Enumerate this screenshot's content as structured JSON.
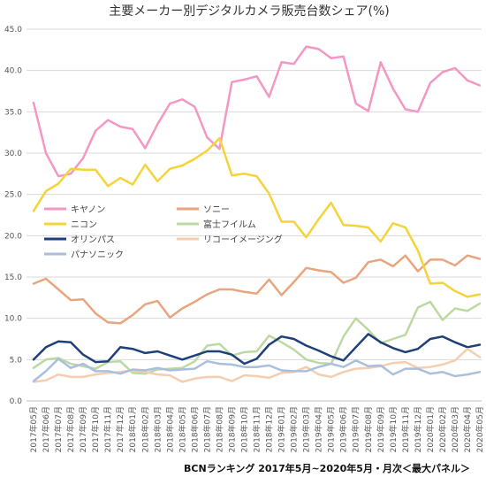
{
  "chart_data": {
    "type": "line",
    "title": "主要メーカー別デジタルカメラ販売台数シェア(%)",
    "source_note": "BCNランキング 2017年5月~2020年5月・月次＜最大パネル＞",
    "ylim": [
      0,
      45
    ],
    "yticks": [
      "0.0",
      "5.0",
      "10.0",
      "15.0",
      "20.0",
      "25.0",
      "30.0",
      "35.0",
      "40.0",
      "45.0"
    ],
    "grid": true,
    "legend_position": "inside-left",
    "categories": [
      "2017年05月",
      "2017年06月",
      "2017年07月",
      "2017年08月",
      "2017年09月",
      "2017年10月",
      "2017年11月",
      "2017年12月",
      "2018年01月",
      "2018年02月",
      "2018年03月",
      "2018年04月",
      "2018年05月",
      "2018年06月",
      "2018年07月",
      "2018年08月",
      "2018年09月",
      "2018年10月",
      "2018年11月",
      "2018年12月",
      "2019年01月",
      "2019年02月",
      "2019年03月",
      "2019年04月",
      "2019年05月",
      "2019年06月",
      "2019年07月",
      "2019年08月",
      "2019年09月",
      "2019年10月",
      "2019年11月",
      "2019年12月",
      "2020年01月",
      "2020年02月",
      "2020年03月",
      "2020年04月",
      "2020年05月"
    ],
    "series": [
      {
        "name": "キヤノン",
        "color": "#f497c5",
        "values": [
          36.1,
          30.0,
          27.2,
          27.5,
          29.4,
          32.7,
          34.0,
          33.2,
          32.9,
          30.6,
          33.5,
          36.0,
          36.5,
          35.6,
          31.9,
          30.5,
          38.6,
          38.9,
          39.3,
          36.8,
          41.0,
          40.8,
          42.9,
          42.6,
          41.5,
          41.7,
          36.0,
          35.1,
          41.0,
          37.8,
          35.3,
          35.0,
          38.5,
          39.8,
          40.3,
          38.8,
          38.2
        ]
      },
      {
        "name": "ソニー",
        "color": "#e8a57e",
        "values": [
          14.2,
          14.8,
          13.5,
          12.2,
          12.3,
          10.6,
          9.5,
          9.4,
          10.4,
          11.7,
          12.1,
          10.1,
          11.2,
          12.0,
          12.9,
          13.5,
          13.5,
          13.2,
          13.0,
          14.7,
          12.8,
          14.4,
          16.1,
          15.8,
          15.6,
          14.3,
          14.9,
          16.8,
          17.1,
          16.3,
          17.6,
          15.7,
          17.1,
          17.1,
          16.4,
          17.6,
          17.2
        ]
      },
      {
        "name": "ニコン",
        "color": "#f5d33a",
        "values": [
          23.0,
          25.4,
          26.3,
          28.1,
          28.0,
          28.0,
          26.0,
          27.0,
          26.2,
          28.6,
          26.6,
          28.1,
          28.5,
          29.3,
          30.3,
          31.8,
          27.3,
          27.5,
          27.2,
          25.1,
          21.7,
          21.7,
          19.8,
          22.0,
          24.0,
          21.3,
          21.2,
          21.0,
          19.3,
          21.5,
          21.0,
          18.2,
          14.2,
          14.3,
          13.3,
          12.6,
          12.9
        ]
      },
      {
        "name": "富士フイルム",
        "color": "#bcd9a2",
        "values": [
          4.0,
          5.0,
          5.2,
          4.5,
          4.2,
          3.9,
          4.7,
          4.8,
          3.4,
          3.3,
          3.8,
          3.9,
          4.0,
          4.8,
          6.7,
          6.9,
          5.5,
          5.9,
          6.0,
          7.9,
          7.1,
          6.2,
          5.0,
          4.6,
          4.5,
          7.8,
          10.0,
          8.6,
          7.0,
          7.5,
          8.0,
          11.3,
          12.0,
          9.8,
          11.2,
          10.9,
          11.8
        ]
      },
      {
        "name": "オリンパス",
        "color": "#1f3f7a",
        "values": [
          5.0,
          6.5,
          7.2,
          7.1,
          5.6,
          4.7,
          4.8,
          6.5,
          6.3,
          5.8,
          6.0,
          5.5,
          5.0,
          5.5,
          6.0,
          6.0,
          5.6,
          4.5,
          5.1,
          6.8,
          7.8,
          7.5,
          6.7,
          6.1,
          5.4,
          4.9,
          6.5,
          8.1,
          7.1,
          6.4,
          5.9,
          6.3,
          7.5,
          7.8,
          7.1,
          6.5,
          6.8
        ]
      },
      {
        "name": "リコーイメージング",
        "color": "#f5cdb0",
        "values": [
          2.3,
          2.5,
          3.2,
          2.9,
          2.9,
          3.2,
          3.4,
          3.5,
          3.7,
          3.5,
          3.2,
          3.1,
          2.3,
          2.7,
          2.9,
          2.9,
          2.4,
          3.1,
          3.0,
          2.8,
          3.4,
          3.5,
          4.1,
          3.2,
          2.9,
          3.5,
          3.9,
          4.0,
          4.2,
          4.6,
          4.7,
          4.0,
          4.1,
          4.4,
          4.9,
          6.3,
          5.3
        ]
      },
      {
        "name": "パナソニック",
        "color": "#a9bfdc",
        "values": [
          2.4,
          3.6,
          5.1,
          4.0,
          4.5,
          3.6,
          3.6,
          3.3,
          3.8,
          3.7,
          4.0,
          3.7,
          3.8,
          3.9,
          4.8,
          4.5,
          4.4,
          4.1,
          4.1,
          4.3,
          3.7,
          3.6,
          3.6,
          4.1,
          4.5,
          4.1,
          4.9,
          4.2,
          4.3,
          3.2,
          3.9,
          3.9,
          3.3,
          3.5,
          3.0,
          3.2,
          3.5
        ]
      }
    ]
  }
}
